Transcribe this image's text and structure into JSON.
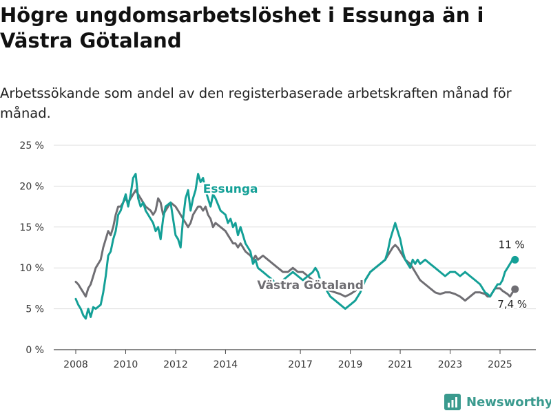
{
  "header": {
    "title": "Högre ungdomsarbetslöshet i Essunga än i Västra Götaland",
    "subtitle": "Arbetssökande som andel av den registerbaserade arbetskraften månad för månad."
  },
  "chart_data": {
    "type": "line",
    "ylim": [
      0,
      25
    ],
    "xlim": [
      2007.5,
      2026.2
    ],
    "y_ticks": [
      0,
      5,
      10,
      15,
      20,
      25
    ],
    "y_tick_labels": [
      "0 %",
      "5 %",
      "10 %",
      "15 %",
      "20 %",
      "25 %"
    ],
    "x_ticks": [
      2008,
      2010,
      2012,
      2014,
      2017,
      2019,
      2021,
      2023,
      2025
    ],
    "x_tick_labels": [
      "2008",
      "2010",
      "2012",
      "2014",
      "2017",
      "2019",
      "2021",
      "2023",
      "2025"
    ],
    "grid": true,
    "series": [
      {
        "name": "Essunga",
        "color": "#14a097",
        "end_label": "11 %",
        "x": [
          2008.0,
          2008.1,
          2008.2,
          2008.3,
          2008.4,
          2008.5,
          2008.6,
          2008.7,
          2008.8,
          2009.0,
          2009.1,
          2009.2,
          2009.3,
          2009.4,
          2009.5,
          2009.6,
          2009.7,
          2009.8,
          2010.0,
          2010.1,
          2010.2,
          2010.3,
          2010.4,
          2010.5,
          2010.6,
          2010.7,
          2010.8,
          2011.0,
          2011.1,
          2011.2,
          2011.3,
          2011.4,
          2011.5,
          2011.6,
          2011.8,
          2012.0,
          2012.1,
          2012.2,
          2012.3,
          2012.4,
          2012.5,
          2012.6,
          2012.7,
          2012.8,
          2012.9,
          2013.0,
          2013.1,
          2013.2,
          2013.3,
          2013.4,
          2013.5,
          2013.6,
          2013.8,
          2014.0,
          2014.1,
          2014.2,
          2014.3,
          2014.4,
          2014.5,
          2014.6,
          2014.8,
          2015.0,
          2015.1,
          2015.2,
          2015.3,
          2015.5,
          2015.7,
          2015.9,
          2016.1,
          2016.3,
          2016.5,
          2016.7,
          2016.9,
          2017.1,
          2017.3,
          2017.5,
          2017.6,
          2017.7,
          2017.8,
          2018.0,
          2018.2,
          2018.4,
          2018.6,
          2018.8,
          2019.0,
          2019.2,
          2019.4,
          2019.6,
          2019.8,
          2020.0,
          2020.2,
          2020.4,
          2020.5,
          2020.6,
          2020.7,
          2020.8,
          2020.9,
          2021.0,
          2021.1,
          2021.2,
          2021.4,
          2021.5,
          2021.6,
          2021.7,
          2021.8,
          2022.0,
          2022.2,
          2022.4,
          2022.6,
          2022.8,
          2023.0,
          2023.2,
          2023.4,
          2023.6,
          2023.8,
          2024.0,
          2024.2,
          2024.4,
          2024.5,
          2024.6,
          2024.7,
          2024.8,
          2024.9,
          2025.0,
          2025.1,
          2025.2,
          2025.3,
          2025.4,
          2025.5,
          2025.6
        ],
        "values": [
          6.2,
          5.5,
          5.0,
          4.2,
          3.8,
          5.0,
          4.0,
          5.2,
          5.0,
          5.5,
          7.0,
          9.0,
          11.5,
          12.0,
          13.5,
          14.5,
          16.5,
          17.0,
          19.0,
          17.5,
          19.0,
          21.0,
          21.5,
          18.5,
          17.5,
          18.0,
          17.0,
          16.0,
          15.5,
          14.5,
          15.0,
          13.5,
          16.0,
          17.5,
          18.0,
          14.0,
          13.5,
          12.5,
          16.0,
          18.5,
          19.5,
          17.0,
          18.5,
          19.5,
          21.5,
          20.5,
          21.0,
          19.5,
          18.5,
          17.5,
          19.0,
          18.5,
          17.0,
          16.5,
          15.5,
          16.0,
          15.0,
          15.5,
          14.0,
          15.0,
          13.0,
          12.0,
          10.5,
          11.0,
          10.0,
          9.5,
          9.0,
          8.5,
          7.5,
          8.5,
          9.0,
          9.5,
          9.0,
          8.5,
          9.0,
          9.5,
          10.0,
          9.5,
          8.5,
          7.5,
          6.5,
          6.0,
          5.5,
          5.0,
          5.5,
          6.0,
          7.0,
          8.5,
          9.5,
          10.0,
          10.5,
          11.0,
          12.0,
          13.5,
          14.5,
          15.5,
          14.5,
          13.5,
          12.0,
          11.0,
          10.0,
          11.0,
          10.5,
          11.0,
          10.5,
          11.0,
          10.5,
          10.0,
          9.5,
          9.0,
          9.5,
          9.5,
          9.0,
          9.5,
          9.0,
          8.5,
          8.0,
          7.0,
          6.8,
          6.5,
          7.0,
          7.5,
          8.0,
          8.0,
          8.5,
          9.5,
          10.0,
          10.5,
          11.0,
          11.0
        ]
      },
      {
        "name": "Västra Götaland",
        "color": "#6f6e73",
        "end_label": "7,4 %",
        "x": [
          2008.0,
          2008.1,
          2008.2,
          2008.3,
          2008.4,
          2008.5,
          2008.6,
          2008.7,
          2008.8,
          2009.0,
          2009.1,
          2009.2,
          2009.3,
          2009.4,
          2009.5,
          2009.6,
          2009.7,
          2009.8,
          2010.0,
          2010.1,
          2010.2,
          2010.3,
          2010.4,
          2010.5,
          2010.6,
          2010.7,
          2010.8,
          2011.0,
          2011.1,
          2011.2,
          2011.3,
          2011.4,
          2011.5,
          2011.6,
          2011.8,
          2012.0,
          2012.1,
          2012.2,
          2012.3,
          2012.4,
          2012.5,
          2012.6,
          2012.7,
          2012.8,
          2012.9,
          2013.0,
          2013.1,
          2013.2,
          2013.3,
          2013.4,
          2013.5,
          2013.6,
          2013.8,
          2014.0,
          2014.1,
          2014.2,
          2014.3,
          2014.4,
          2014.5,
          2014.6,
          2014.8,
          2015.0,
          2015.1,
          2015.2,
          2015.3,
          2015.5,
          2015.7,
          2015.9,
          2016.1,
          2016.3,
          2016.5,
          2016.7,
          2016.9,
          2017.1,
          2017.3,
          2017.5,
          2017.6,
          2017.7,
          2017.8,
          2018.0,
          2018.2,
          2018.4,
          2018.6,
          2018.8,
          2019.0,
          2019.2,
          2019.4,
          2019.6,
          2019.8,
          2020.0,
          2020.2,
          2020.4,
          2020.5,
          2020.6,
          2020.7,
          2020.8,
          2020.9,
          2021.0,
          2021.1,
          2021.2,
          2021.4,
          2021.5,
          2021.6,
          2021.7,
          2021.8,
          2022.0,
          2022.2,
          2022.4,
          2022.6,
          2022.8,
          2023.0,
          2023.2,
          2023.4,
          2023.6,
          2023.8,
          2024.0,
          2024.2,
          2024.4,
          2024.5,
          2024.6,
          2024.7,
          2024.8,
          2024.9,
          2025.0,
          2025.1,
          2025.2,
          2025.3,
          2025.4,
          2025.5,
          2025.6
        ],
        "values": [
          8.3,
          8.0,
          7.5,
          7.0,
          6.5,
          7.5,
          8.0,
          9.0,
          10.0,
          11.0,
          12.5,
          13.5,
          14.5,
          14.0,
          15.0,
          16.5,
          17.5,
          17.5,
          18.5,
          18.0,
          18.5,
          19.0,
          19.5,
          19.0,
          18.5,
          18.0,
          17.5,
          17.0,
          16.5,
          17.0,
          18.5,
          18.0,
          16.5,
          17.0,
          18.0,
          17.5,
          17.0,
          16.5,
          16.0,
          15.5,
          15.0,
          15.5,
          16.5,
          17.0,
          17.5,
          17.5,
          17.0,
          17.5,
          16.5,
          16.0,
          15.0,
          15.5,
          15.0,
          14.5,
          14.0,
          13.5,
          13.0,
          13.0,
          12.5,
          13.0,
          12.0,
          11.5,
          11.0,
          11.5,
          11.0,
          11.5,
          11.0,
          10.5,
          10.0,
          9.5,
          9.5,
          10.0,
          9.5,
          9.5,
          9.0,
          8.5,
          8.0,
          7.8,
          7.5,
          7.5,
          7.2,
          7.0,
          6.8,
          6.5,
          6.8,
          7.2,
          7.8,
          8.5,
          9.5,
          10.0,
          10.5,
          11.0,
          11.5,
          12.0,
          12.5,
          12.8,
          12.5,
          12.0,
          11.5,
          11.0,
          10.5,
          10.0,
          9.5,
          9.0,
          8.5,
          8.0,
          7.5,
          7.0,
          6.8,
          7.0,
          7.0,
          6.8,
          6.5,
          6.0,
          6.5,
          7.0,
          7.0,
          6.8,
          6.5,
          6.5,
          7.0,
          7.5,
          7.5,
          7.5,
          7.2,
          7.0,
          6.8,
          6.5,
          7.0,
          7.4
        ]
      }
    ],
    "annotations": [
      {
        "text": "Essunga",
        "series": "Essunga",
        "at": 2014.2,
        "value": 19.7,
        "color": "#14a097"
      },
      {
        "text": "Västra Götaland",
        "series": "Västra Götaland",
        "at": 2017.4,
        "value": 7.9,
        "color": "#6f6e73"
      }
    ]
  },
  "footer": {
    "brand": "Newsworthy",
    "brand_color": "#3a9a8e"
  }
}
